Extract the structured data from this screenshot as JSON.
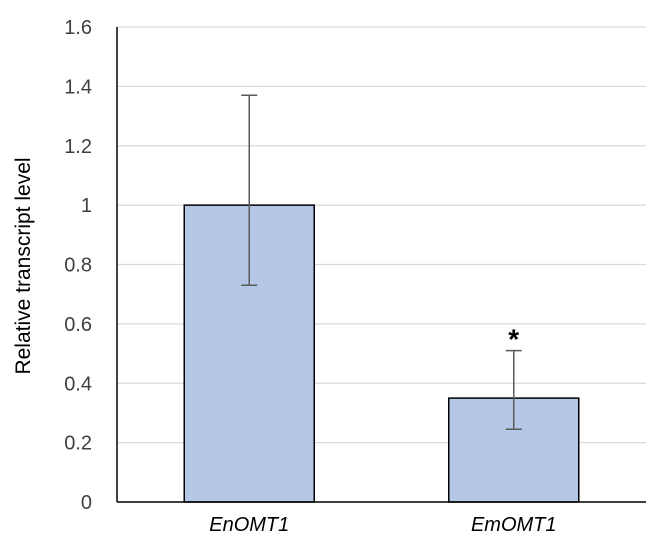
{
  "chart_data": {
    "type": "bar",
    "title": "",
    "xlabel": "",
    "ylabel": "Relative transcript level",
    "categories": [
      "EnOMT1",
      "EmOMT1"
    ],
    "values": [
      1.0,
      0.35
    ],
    "error_upper": [
      1.37,
      0.51
    ],
    "error_lower": [
      0.73,
      0.245
    ],
    "annotations": [
      {
        "category": "EmOMT1",
        "text": "*"
      }
    ],
    "ylim": [
      0,
      1.6
    ],
    "yticks": [
      0,
      0.2,
      0.4,
      0.6,
      0.8,
      1,
      1.2,
      1.4,
      1.6
    ],
    "ytick_labels": [
      "0",
      "0.2",
      "0.4",
      "0.6",
      "0.8",
      "1",
      "1.2",
      "1.4",
      "1.6"
    ],
    "grid": true,
    "legend": "none",
    "colors": {
      "bar_fill": "#b4c7e7",
      "bar_stroke": "#000000",
      "grid": "#d9d9d9",
      "axis": "#000000",
      "error_bar": "#595959"
    }
  }
}
